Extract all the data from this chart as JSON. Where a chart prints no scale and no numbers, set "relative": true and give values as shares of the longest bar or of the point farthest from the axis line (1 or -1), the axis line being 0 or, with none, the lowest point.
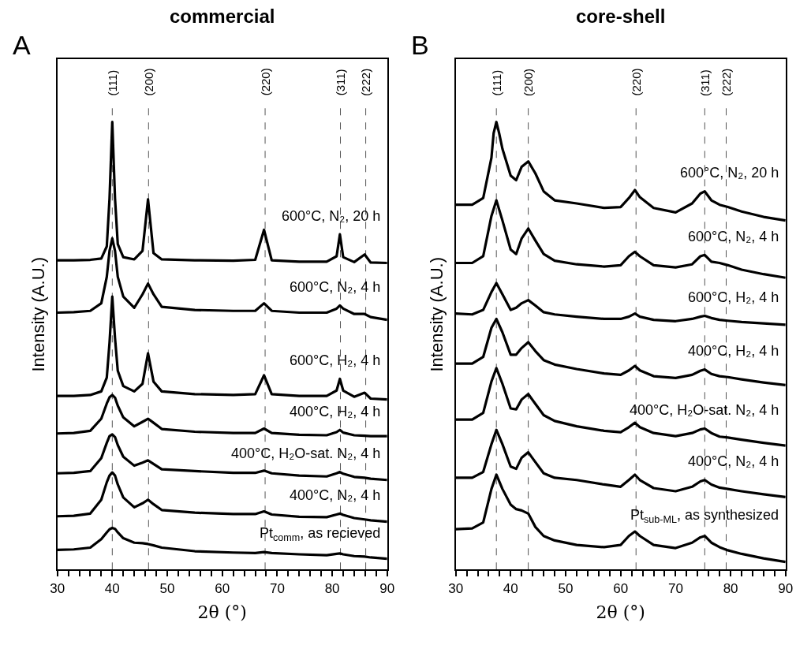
{
  "chart_data": [
    {
      "type": "line",
      "title": "commercial",
      "xlabel": "2θ (°)",
      "ylabel": "Intensity (A.U.)",
      "relative": true,
      "grid": false,
      "marker": "none",
      "line_style": "solid",
      "tick_labels": "x",
      "x": [
        30,
        33,
        36,
        38,
        39,
        39.5,
        40,
        40.5,
        41,
        42,
        44,
        45.5,
        46.5,
        47.5,
        49,
        55,
        62,
        66,
        67.6,
        69,
        74,
        79,
        80.8,
        81.4,
        82,
        84,
        85.9,
        87,
        90
      ],
      "xlim": [
        30,
        90
      ],
      "xticks": [
        30,
        {
          "value": 32,
          "label": null
        },
        {
          "value": 34,
          "label": null
        },
        {
          "value": 36,
          "label": null
        },
        {
          "value": 38,
          "label": null
        },
        40,
        {
          "value": 42,
          "label": null
        },
        {
          "value": 44,
          "label": null
        },
        {
          "value": 46,
          "label": null
        },
        {
          "value": 48,
          "label": null
        },
        50,
        {
          "value": 52,
          "label": null
        },
        {
          "value": 54,
          "label": null
        },
        {
          "value": 56,
          "label": null
        },
        {
          "value": 58,
          "label": null
        },
        60,
        {
          "value": 62,
          "label": null
        },
        {
          "value": 64,
          "label": null
        },
        {
          "value": 66,
          "label": null
        },
        {
          "value": 68,
          "label": null
        },
        70,
        {
          "value": 72,
          "label": null
        },
        {
          "value": 74,
          "label": null
        },
        {
          "value": 76,
          "label": null
        },
        {
          "value": 78,
          "label": null
        },
        80,
        {
          "value": 82,
          "label": null
        },
        {
          "value": 84,
          "label": null
        },
        {
          "value": 86,
          "label": null
        },
        {
          "value": 88,
          "label": null
        },
        90
      ],
      "series": [
        {
          "color": "#000000",
          "values": [
            0.044,
            0.045,
            0.049,
            0.068,
            0.083,
            0.09,
            0.093,
            0.091,
            0.083,
            0.07,
            0.06,
            0.059,
            0.057,
            0.054,
            0.049,
            0.041,
            0.038,
            0.037,
            0.039,
            0.037,
            0.034,
            0.032,
            0.035,
            0.036,
            0.034,
            0.03,
            0.029,
            0.027,
            0.024
          ]
        },
        {
          "color": "#000000",
          "values": [
            0.119,
            0.12,
            0.125,
            0.156,
            0.195,
            0.21,
            0.217,
            0.21,
            0.19,
            0.161,
            0.139,
            0.148,
            0.156,
            0.146,
            0.133,
            0.127,
            0.124,
            0.124,
            0.13,
            0.123,
            0.118,
            0.117,
            0.123,
            0.125,
            0.122,
            0.115,
            0.112,
            0.11,
            0.107
          ]
        },
        {
          "color": "#000000",
          "values": [
            0.215,
            0.216,
            0.22,
            0.249,
            0.283,
            0.298,
            0.302,
            0.296,
            0.278,
            0.252,
            0.232,
            0.239,
            0.244,
            0.236,
            0.224,
            0.22,
            0.216,
            0.216,
            0.221,
            0.215,
            0.21,
            0.208,
            0.215,
            0.218,
            0.214,
            0.207,
            0.205,
            0.203,
            0.2
          ]
        },
        {
          "color": "#000000",
          "values": [
            0.304,
            0.305,
            0.31,
            0.337,
            0.371,
            0.385,
            0.39,
            0.384,
            0.366,
            0.34,
            0.32,
            0.33,
            0.337,
            0.328,
            0.314,
            0.308,
            0.305,
            0.305,
            0.315,
            0.305,
            0.301,
            0.3,
            0.307,
            0.312,
            0.306,
            0.3,
            0.299,
            0.298,
            0.298
          ]
        },
        {
          "color": "#000000",
          "values": [
            0.388,
            0.388,
            0.39,
            0.398,
            0.429,
            0.507,
            0.61,
            0.517,
            0.444,
            0.41,
            0.398,
            0.415,
            0.483,
            0.42,
            0.398,
            0.392,
            0.39,
            0.392,
            0.434,
            0.392,
            0.388,
            0.388,
            0.4,
            0.426,
            0.4,
            0.386,
            0.395,
            0.382,
            0.38
          ]
        },
        {
          "color": "#000000",
          "values": [
            0.574,
            0.575,
            0.578,
            0.595,
            0.654,
            0.712,
            0.74,
            0.712,
            0.654,
            0.61,
            0.585,
            0.615,
            0.639,
            0.615,
            0.587,
            0.58,
            0.578,
            0.578,
            0.595,
            0.578,
            0.574,
            0.574,
            0.583,
            0.59,
            0.583,
            0.571,
            0.571,
            0.564,
            0.558
          ]
        },
        {
          "color": "#000000",
          "values": [
            0.691,
            0.691,
            0.692,
            0.695,
            0.722,
            0.829,
            1,
            0.829,
            0.727,
            0.698,
            0.693,
            0.712,
            0.827,
            0.707,
            0.693,
            0.691,
            0.69,
            0.692,
            0.759,
            0.691,
            0.688,
            0.688,
            0.7,
            0.749,
            0.698,
            0.687,
            0.704,
            0.686,
            0.685
          ]
        }
      ],
      "ref_lines": [
        {
          "axis": "x",
          "value": 40.0,
          "color": "#555555",
          "line_style": "dashed"
        },
        {
          "axis": "x",
          "value": 46.6,
          "color": "#555555",
          "line_style": "dashed"
        },
        {
          "axis": "x",
          "value": 67.8,
          "color": "#555555",
          "line_style": "dashed"
        },
        {
          "axis": "x",
          "value": 81.5,
          "color": "#555555",
          "line_style": "dashed"
        },
        {
          "axis": "x",
          "value": 86.1,
          "color": "#555555",
          "line_style": "dashed"
        }
      ],
      "annotations": [
        "A",
        "(111)",
        "(200)",
        "(220)",
        "(311)",
        "(222)",
        "600°C, N₂, 20 h",
        "600°C, N₂, 4 h",
        "600°C, H₂, 4 h",
        "400°C, H₂, 4 h",
        "400°C, H₂O-sat. N₂, 4 h",
        "400°C, N₂, 4 h",
        "Pt$_{comm}$, as recieved"
      ]
    },
    {
      "type": "line",
      "title": "core-shell",
      "xlabel": "2θ (°)",
      "ylabel": "Intensity (A.U.)",
      "relative": true,
      "grid": false,
      "marker": "none",
      "line_style": "solid",
      "tick_labels": "x",
      "x": [
        30,
        33,
        35,
        36.5,
        37.4,
        38.5,
        40,
        41,
        42,
        43.2,
        44.5,
        46,
        48,
        52,
        57,
        60,
        61.5,
        62.6,
        63.5,
        66,
        70,
        73,
        74.5,
        75.3,
        76.5,
        78,
        79.5,
        82,
        86,
        90
      ],
      "xlim": [
        30,
        90
      ],
      "xticks": [
        30,
        {
          "value": 32,
          "label": null
        },
        {
          "value": 34,
          "label": null
        },
        {
          "value": 36,
          "label": null
        },
        {
          "value": 38,
          "label": null
        },
        40,
        {
          "value": 42,
          "label": null
        },
        {
          "value": 44,
          "label": null
        },
        {
          "value": 46,
          "label": null
        },
        {
          "value": 48,
          "label": null
        },
        50,
        {
          "value": 52,
          "label": null
        },
        {
          "value": 54,
          "label": null
        },
        {
          "value": 56,
          "label": null
        },
        {
          "value": 58,
          "label": null
        },
        60,
        {
          "value": 62,
          "label": null
        },
        {
          "value": 64,
          "label": null
        },
        {
          "value": 66,
          "label": null
        },
        {
          "value": 68,
          "label": null
        },
        70,
        {
          "value": 72,
          "label": null
        },
        {
          "value": 74,
          "label": null
        },
        {
          "value": 76,
          "label": null
        },
        {
          "value": 78,
          "label": null
        },
        80,
        {
          "value": 82,
          "label": null
        },
        {
          "value": 84,
          "label": null
        },
        {
          "value": 86,
          "label": null
        },
        {
          "value": 88,
          "label": null
        },
        90
      ],
      "series": [
        {
          "color": "#000000",
          "values": [
            0.09,
            0.092,
            0.105,
            0.18,
            0.212,
            0.18,
            0.145,
            0.135,
            0.132,
            0.125,
            0.095,
            0.075,
            0.065,
            0.055,
            0.05,
            0.055,
            0.075,
            0.085,
            0.075,
            0.055,
            0.048,
            0.06,
            0.072,
            0.075,
            0.06,
            0.05,
            0.043,
            0.035,
            0.025,
            0.017
          ]
        },
        {
          "color": "#000000",
          "values": [
            0.205,
            0.205,
            0.218,
            0.28,
            0.312,
            0.28,
            0.23,
            0.225,
            0.25,
            0.262,
            0.24,
            0.215,
            0.205,
            0.2,
            0.19,
            0.185,
            0.2,
            0.212,
            0.2,
            0.182,
            0.175,
            0.185,
            0.197,
            0.2,
            0.19,
            0.183,
            0.18,
            0.175,
            0.168,
            0.162
          ]
        },
        {
          "color": "#000000",
          "values": [
            0.335,
            0.335,
            0.35,
            0.42,
            0.45,
            0.415,
            0.36,
            0.358,
            0.38,
            0.392,
            0.37,
            0.345,
            0.332,
            0.32,
            0.31,
            0.307,
            0.318,
            0.328,
            0.318,
            0.305,
            0.298,
            0.305,
            0.313,
            0.315,
            0.305,
            0.297,
            0.295,
            0.29,
            0.283,
            0.277
          ]
        },
        {
          "color": "#000000",
          "values": [
            0.46,
            0.46,
            0.475,
            0.54,
            0.56,
            0.53,
            0.48,
            0.48,
            0.495,
            0.508,
            0.488,
            0.468,
            0.458,
            0.448,
            0.438,
            0.435,
            0.445,
            0.455,
            0.445,
            0.432,
            0.428,
            0.435,
            0.444,
            0.447,
            0.437,
            0.432,
            0.43,
            0.425,
            0.418,
            0.412
          ]
        },
        {
          "color": "#000000",
          "values": [
            0.572,
            0.57,
            0.58,
            0.62,
            0.64,
            0.615,
            0.58,
            0.585,
            0.595,
            0.602,
            0.59,
            0.575,
            0.57,
            0.565,
            0.56,
            0.56,
            0.565,
            0.572,
            0.565,
            0.558,
            0.555,
            0.56,
            0.565,
            0.567,
            0.562,
            0.558,
            0.556,
            0.553,
            0.55,
            0.547
          ]
        },
        {
          "color": "#000000",
          "values": [
            0.685,
            0.685,
            0.7,
            0.79,
            0.825,
            0.78,
            0.715,
            0.705,
            0.74,
            0.762,
            0.735,
            0.705,
            0.69,
            0.682,
            0.677,
            0.68,
            0.7,
            0.71,
            0.7,
            0.68,
            0.675,
            0.682,
            0.7,
            0.703,
            0.688,
            0.685,
            0.68,
            0.67,
            0.66,
            0.652
          ]
        },
        {
          "color": "#000000",
          "x": [
            30,
            33,
            35,
            36.5,
            36.9,
            37.4,
            37.9,
            38.5,
            40,
            41,
            42,
            43.2,
            44.5,
            46,
            48,
            52,
            57,
            60,
            61.5,
            62.6,
            63.5,
            66,
            70,
            73,
            74.5,
            75.3,
            76.5,
            78,
            79.5,
            82,
            86,
            90
          ],
          "values": [
            0.815,
            0.815,
            0.83,
            0.92,
            0.975,
            1,
            0.975,
            0.94,
            0.88,
            0.87,
            0.9,
            0.912,
            0.885,
            0.845,
            0.825,
            0.818,
            0.808,
            0.81,
            0.83,
            0.848,
            0.832,
            0.808,
            0.798,
            0.818,
            0.84,
            0.845,
            0.825,
            0.815,
            0.81,
            0.8,
            0.788,
            0.78
          ]
        }
      ],
      "ref_lines": [
        {
          "axis": "x",
          "value": 37.4,
          "color": "#555555",
          "line_style": "dashed"
        },
        {
          "axis": "x",
          "value": 43.2,
          "color": "#555555",
          "line_style": "dashed"
        },
        {
          "axis": "x",
          "value": 62.8,
          "color": "#555555",
          "line_style": "dashed"
        },
        {
          "axis": "x",
          "value": 75.3,
          "color": "#555555",
          "line_style": "dashed"
        },
        {
          "axis": "x",
          "value": 79.2,
          "color": "#555555",
          "line_style": "dashed"
        }
      ],
      "annotations": [
        "B",
        "(111)",
        "(200)",
        "(220)",
        "(311)",
        "(222)",
        "600°C, N₂, 20 h",
        "600°C, N₂, 4 h",
        "600°C, H₂, 4 h",
        "400°C, H₂, 4 h",
        "400°C, H₂O-sat. N₂, 4 h",
        "400°C, N₂, 4 h",
        "Pt$_{sub-ML}$, as synthesized"
      ]
    }
  ]
}
